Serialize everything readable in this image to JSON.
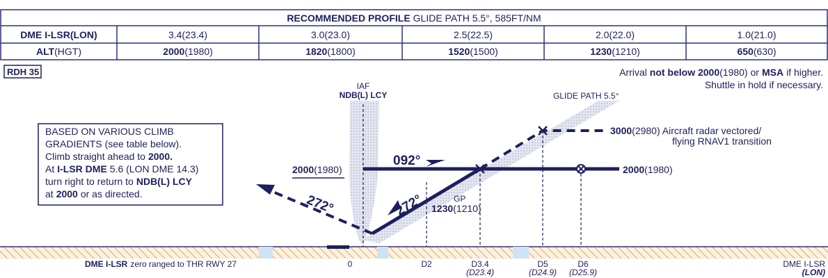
{
  "header": {
    "bold": "RECOMMENDED PROFILE",
    "rest": "GLIDE PATH 5.5°, 585FT/NM"
  },
  "table": {
    "rows": [
      [
        "DME I-LSR(LON)",
        "3.4(23.4)",
        "3.0(23.0)",
        "2.5(22.5)",
        "2.0(22.0)",
        "1.0(21.0)"
      ],
      [
        {
          "bold": "ALT",
          "rest": "(HGT)"
        },
        {
          "bold": "2000",
          "rest": "(1980)"
        },
        {
          "bold": "1820",
          "rest": "(1800)"
        },
        {
          "bold": "1520",
          "rest": "(1500)"
        },
        {
          "bold": "1230",
          "rest": "(1210)"
        },
        {
          "bold": "650",
          "rest": "(630)"
        }
      ]
    ]
  },
  "profile": {
    "rdh": "RDH 35",
    "arrival": {
      "a": "Arrival",
      "b": "not below 2000",
      "c": "(1980) or",
      "d": "MSA",
      "e": "if higher."
    },
    "shuttle": "Shuttle in hold if necessary.",
    "iaf": "IAF",
    "ndb": "NDB(L) LCY",
    "glide_path": "GLIDE PATH 5.5°",
    "note": {
      "l1": "BASED ON VARIOUS CLIMB",
      "l2": "GRADIENTS (see table below).",
      "l3a": "Climb straight ahead to",
      "l3b": "2000.",
      "l4a": "At",
      "l4b": "I-LSR DME",
      "l4c": "5.6 (LON DME 14.3)",
      "l5a": "turn right to return to",
      "l5b": "NDB(L) LCY",
      "l6a": "at",
      "l6b": "2000",
      "l6c": "or as directed."
    },
    "left_alt": {
      "bold": "2000",
      "rest": "(1980)"
    },
    "outbound": "092°",
    "transition": {
      "bold": "3000",
      "rest": "(2980) Aircraft radar vectored/",
      "l2": "flying RNAV1 transition"
    },
    "right_alt": {
      "bold": "2000",
      "rest": "(1980)"
    },
    "missed": "272°",
    "inbound": "272°",
    "gp": "GP",
    "gp_alt": {
      "bold": "1230",
      "rest": "(1210)"
    },
    "ground": {
      "zero": {
        "bold": "DME I-LSR",
        "rest": "zero ranged to THR RWY 27"
      },
      "d0": "0",
      "d2": "D2",
      "d34": "D3.4",
      "d34b": "(D23.4)",
      "d5": "D5",
      "d5b": "(D24.9)",
      "d6": "D6",
      "d6b": "(D25.9)",
      "dme": "DME I-LSR",
      "lon": "(LON)"
    }
  }
}
